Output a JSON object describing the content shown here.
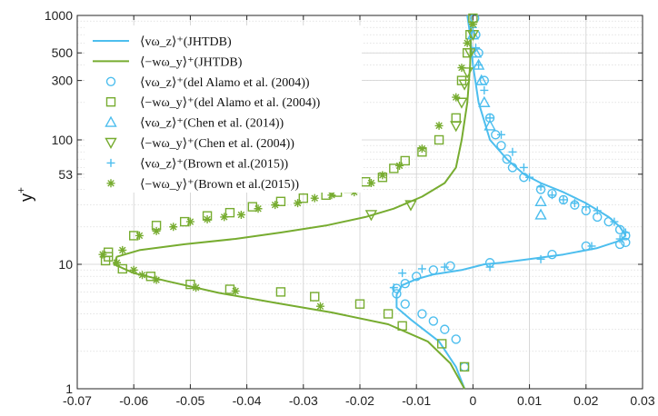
{
  "chart_data": {
    "type": "scatter",
    "y_scale": "log",
    "xlim": [
      -0.07,
      0.03
    ],
    "ylim": [
      1,
      1000
    ],
    "xlabel": "",
    "ylabel": "y+",
    "ylabel_main": "y",
    "ylabel_sup": "+",
    "grid": true,
    "legend_position": "top-left",
    "colors": {
      "blue": "#4DBEEE",
      "green": "#77AC30"
    },
    "x_ticks": [
      -0.07,
      -0.06,
      -0.05,
      -0.04,
      -0.03,
      -0.02,
      -0.01,
      0,
      0.01,
      0.02,
      0.03
    ],
    "x_tick_labels": [
      "-0.07",
      "-0.06",
      "-0.05",
      "-0.04",
      "-0.03",
      "-0.02",
      "-0.01",
      "0",
      "0.01",
      "0.02",
      "0.03"
    ],
    "y_ticks": [
      1,
      10,
      53,
      100,
      300,
      500,
      1000
    ],
    "y_tick_labels": [
      "1",
      "10",
      "53",
      "100",
      "300",
      "500",
      "1000"
    ],
    "series": [
      {
        "name": "⟨vω_z⟩⁺(JHTDB)",
        "kind": "line",
        "color": "#4DBEEE",
        "x": [
          -0.001,
          -0.0005,
          0.0,
          0.001,
          0.003,
          0.006,
          0.009,
          0.012,
          0.016,
          0.02,
          0.024,
          0.026,
          0.027,
          0.026,
          0.022,
          0.016,
          0.01,
          0.005,
          0.002,
          0.0005,
          -0.002,
          -0.007,
          -0.01,
          -0.0125,
          -0.0135,
          -0.0135,
          -0.011,
          -0.006,
          -0.003,
          -0.0015
        ],
        "y": [
          1000,
          700,
          400,
          200,
          100,
          70,
          53,
          45,
          38,
          31,
          24,
          20,
          17,
          15.5,
          13.5,
          12,
          11,
          10.3,
          10,
          9.6,
          9.0,
          8.3,
          7.6,
          6.8,
          5.7,
          4.5,
          3.6,
          2.4,
          1.5,
          1.0
        ]
      },
      {
        "name": "⟨−wω_y⟩⁺(JHTDB)",
        "kind": "line",
        "color": "#77AC30",
        "x": [
          -0.0015,
          -0.004,
          -0.008,
          -0.015,
          -0.025,
          -0.035,
          -0.045,
          -0.054,
          -0.06,
          -0.0635,
          -0.063,
          -0.059,
          -0.051,
          -0.042,
          -0.034,
          -0.026,
          -0.019,
          -0.014,
          -0.009,
          -0.005,
          -0.003,
          -0.002,
          -0.001,
          -0.0005,
          -0.0003
        ],
        "y": [
          1.0,
          1.6,
          2.4,
          3.3,
          4.1,
          4.9,
          5.9,
          7.3,
          8.5,
          10,
          11.5,
          13,
          14.5,
          16,
          18,
          20.5,
          24,
          28,
          35,
          45,
          60,
          100,
          200,
          400,
          1000
        ]
      },
      {
        "name": "⟨vω_z⟩⁺(del Alamo et al. (2004))",
        "kind": "marker",
        "marker": "circle",
        "color": "#4DBEEE",
        "x": [
          0.0003,
          0.0005,
          0.001,
          0.002,
          0.003,
          0.004,
          0.005,
          0.006,
          0.007,
          0.009,
          0.012,
          0.014,
          0.016,
          0.018,
          0.02,
          0.022,
          0.024,
          0.026,
          0.027,
          0.027,
          0.026,
          0.02,
          0.014,
          0.003,
          -0.004,
          -0.007,
          -0.01,
          -0.012,
          -0.0135,
          -0.0135,
          -0.012,
          -0.009,
          -0.007,
          -0.005,
          -0.003,
          -0.0015
        ],
        "y": [
          950,
          700,
          500,
          300,
          150,
          110,
          90,
          70,
          60,
          50,
          40,
          37,
          33,
          30,
          27,
          24,
          22,
          19,
          17,
          15,
          14.5,
          14,
          12,
          10.3,
          9.7,
          9.0,
          8.0,
          7.0,
          6.4,
          5.8,
          4.8,
          4.0,
          3.5,
          3.0,
          2.5,
          1.5
        ]
      },
      {
        "name": "⟨−wω_y⟩⁺(del Alamo et al. (2004))",
        "kind": "marker",
        "marker": "square",
        "color": "#77AC30",
        "x": [
          0.0,
          -0.0005,
          -0.001,
          -0.002,
          -0.003,
          -0.006,
          -0.009,
          -0.012,
          -0.014,
          -0.016,
          -0.019,
          -0.022,
          -0.024,
          -0.026,
          -0.03,
          -0.034,
          -0.039,
          -0.043,
          -0.047,
          -0.051,
          -0.056,
          -0.06,
          -0.0645,
          -0.0645,
          -0.065,
          -0.062,
          -0.057,
          -0.05,
          -0.043,
          -0.034,
          -0.028,
          -0.02,
          -0.015,
          -0.0125,
          -0.0055,
          -0.0015
        ],
        "y": [
          950,
          700,
          500,
          300,
          150,
          100,
          80,
          68,
          59,
          50,
          46,
          41,
          38,
          36,
          34,
          32,
          29,
          26,
          24.5,
          22,
          20.5,
          17,
          12.5,
          11.5,
          10.7,
          9.2,
          8.0,
          6.9,
          6.3,
          6.0,
          5.5,
          4.8,
          4.0,
          3.2,
          2.3,
          1.5
        ]
      },
      {
        "name": "⟨vω_z⟩⁺(Chen et al. (2014))",
        "kind": "marker",
        "marker": "triangle-up",
        "color": "#4DBEEE",
        "x": [
          0.0,
          0.0005,
          0.001,
          0.0015,
          0.002,
          0.003,
          0.012,
          0.012
        ],
        "y": [
          700,
          500,
          400,
          300,
          200,
          130,
          32,
          25
        ]
      },
      {
        "name": "⟨−wω_y⟩⁺(Chen et al. (2004))",
        "kind": "marker",
        "marker": "triangle-down",
        "color": "#77AC30",
        "x": [
          0.0,
          -0.0005,
          -0.001,
          -0.0015,
          -0.002,
          -0.003,
          -0.018,
          -0.011
        ],
        "y": [
          700,
          500,
          350,
          280,
          200,
          130,
          25,
          30
        ]
      },
      {
        "name": "⟨vω_z⟩⁺(Brown et al.(2015))",
        "kind": "marker",
        "marker": "plus",
        "color": "#4DBEEE",
        "x": [
          0.0,
          0.0005,
          0.001,
          0.002,
          0.003,
          0.005,
          0.007,
          0.009,
          0.01,
          0.012,
          0.014,
          0.016,
          0.018,
          0.02,
          0.022,
          0.025,
          0.027,
          0.026,
          0.021,
          0.012,
          0.003,
          -0.005,
          -0.009,
          -0.0125,
          -0.014
        ],
        "y": [
          800,
          550,
          400,
          250,
          150,
          110,
          80,
          60,
          50,
          42,
          36,
          33,
          31,
          29,
          27,
          22,
          18,
          16,
          14,
          11,
          9.5,
          9.5,
          9.2,
          8.5,
          6.5
        ]
      },
      {
        "name": "⟨−wω_y⟩⁺(Brown et al.(2015))",
        "kind": "marker",
        "marker": "asterisk",
        "color": "#77AC30",
        "x": [
          0.0,
          -0.001,
          -0.002,
          -0.003,
          -0.006,
          -0.009,
          -0.013,
          -0.016,
          -0.018,
          -0.021,
          -0.025,
          -0.028,
          -0.031,
          -0.035,
          -0.038,
          -0.041,
          -0.044,
          -0.047,
          -0.05,
          -0.053,
          -0.056,
          -0.059,
          -0.062,
          -0.0655,
          -0.063,
          -0.06,
          -0.0585,
          -0.056,
          -0.049,
          -0.042,
          -0.027
        ],
        "y": [
          850,
          600,
          380,
          220,
          130,
          85,
          62,
          52,
          45,
          38,
          36,
          34,
          31,
          30,
          28,
          25,
          24,
          23,
          22,
          20,
          18.5,
          17,
          13,
          12,
          10.3,
          9,
          8.2,
          7.5,
          6.5,
          6.1,
          4.6
        ]
      }
    ]
  }
}
